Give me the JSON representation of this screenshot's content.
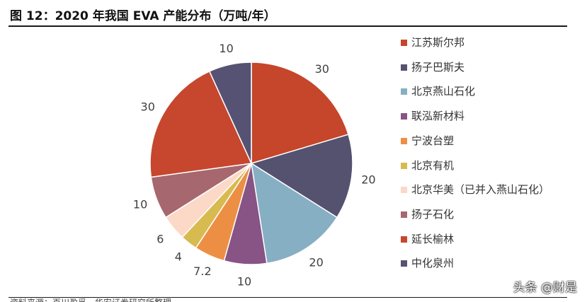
{
  "title": "图 12：2020 年我国 EVA 产能分布（万吨/年）",
  "source": "资料来源：百川盈孚，华安证券研究所整理",
  "watermark": "头条 @财是",
  "chart_data": {
    "type": "pie",
    "title": "图 12：2020 年我国 EVA 产能分布（万吨/年）",
    "unit": "万吨/年",
    "legend_position": "right",
    "categories": [
      "江苏斯尔邦",
      "扬子巴斯夫",
      "北京燕山石化",
      "联泓新材料",
      "宁波台塑",
      "北京有机",
      "北京华美（已并入燕山石化）",
      "扬子石化",
      "延长榆林",
      "中化泉州"
    ],
    "values": [
      30,
      20,
      20,
      10,
      7.2,
      4,
      6,
      10,
      30,
      10
    ],
    "value_labels": [
      "30",
      "20",
      "20",
      "10",
      "7.2",
      "4",
      "6",
      "10",
      "30",
      "10"
    ],
    "colors": [
      "#c5462a",
      "#555270",
      "#87afc3",
      "#875485",
      "#ec8f44",
      "#d7bb50",
      "#fcd8c6",
      "#a7676f",
      "#c6472e",
      "#565273"
    ]
  }
}
